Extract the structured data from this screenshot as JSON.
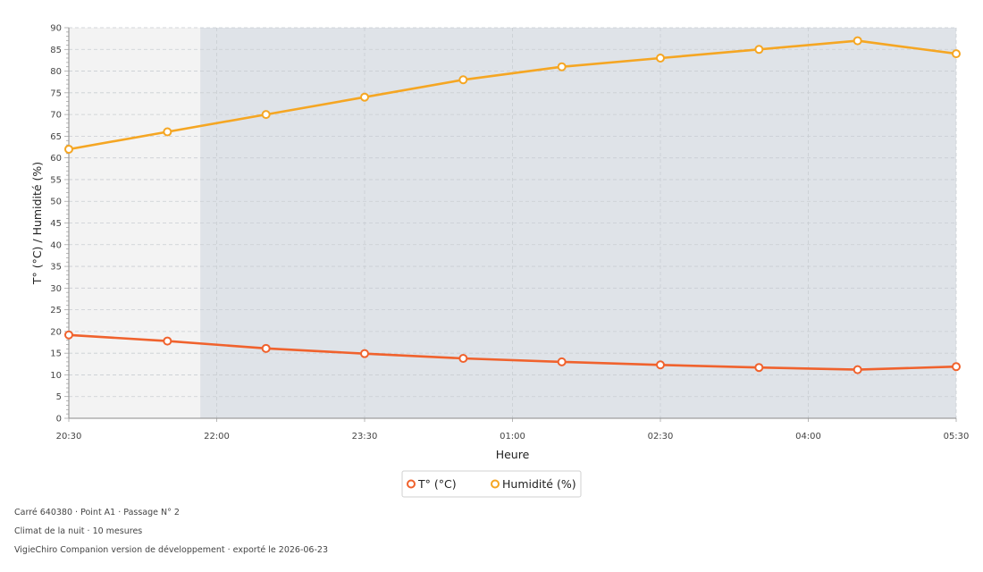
{
  "chart_data": {
    "type": "line",
    "xlabel": "Heure",
    "ylabel": "T° (°C) / Humidité (%)",
    "x": [
      "20:30",
      "21:30",
      "22:30",
      "23:30",
      "00:30",
      "01:30",
      "02:30",
      "03:30",
      "04:30",
      "05:30"
    ],
    "x_tick_labels": [
      "20:30",
      "22:00",
      "23:30",
      "01:00",
      "02:30",
      "04:00",
      "05:30"
    ],
    "ylim": [
      0,
      90
    ],
    "y_ticks": [
      0,
      5,
      10,
      15,
      20,
      25,
      30,
      35,
      40,
      45,
      50,
      55,
      60,
      65,
      70,
      75,
      80,
      85,
      90
    ],
    "grid": true,
    "night_band_start": "21:50",
    "series": [
      {
        "name": "T° (°C)",
        "color": "#f0622d",
        "values": [
          19.2,
          17.8,
          16.1,
          14.9,
          13.8,
          13.0,
          12.3,
          11.7,
          11.2,
          11.9
        ]
      },
      {
        "name": "Humidité (%)",
        "color": "#f5a623",
        "values": [
          62,
          66,
          70,
          74,
          78,
          81,
          83,
          85,
          87,
          84
        ]
      }
    ],
    "legend_position": "bottom"
  },
  "colors": {
    "plot_background": "#f3f3f3",
    "night_band": "#dfe3e8",
    "grid": "#c9cdd2"
  },
  "footer": {
    "line1": "Carré 640380 · Point A1 · Passage N° 2",
    "line2": "Climat de la nuit · 10 mesures",
    "line3": "VigieChiro Companion version de développement · exporté le 2026-06-23"
  }
}
